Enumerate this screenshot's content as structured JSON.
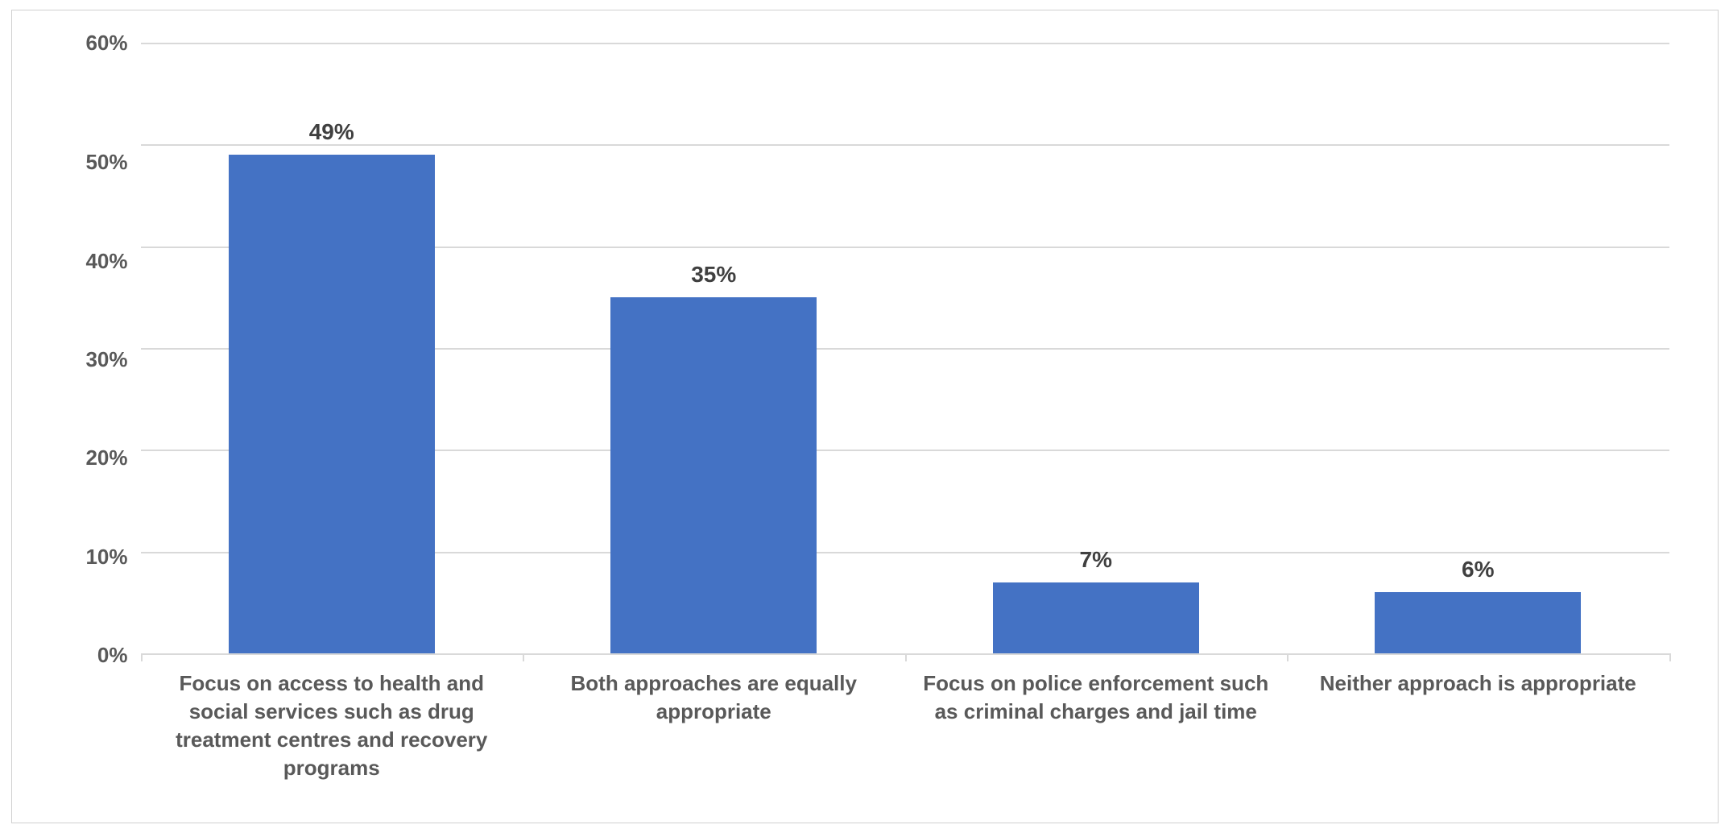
{
  "chart": {
    "type": "bar",
    "background_color": "#ffffff",
    "border_color": "#d0d0d0",
    "grid_color": "#d9d9d9",
    "axis_text_color": "#595959",
    "label_text_color": "#404040",
    "axis_fontsize_pt": 20,
    "data_label_fontsize_pt": 21,
    "font_weight": "700",
    "ylim": [
      0,
      60
    ],
    "ytick_step": 10,
    "y_ticks": [
      "60%",
      "50%",
      "40%",
      "30%",
      "20%",
      "10%",
      "0%"
    ],
    "y_format": "percent",
    "bar_width_ratio": 0.54,
    "bar_color": "#4472c4",
    "categories": [
      "Focus on access to health and social services such as drug treatment centres and recovery programs",
      "Both approaches are equally appropriate",
      "Focus on police enforcement such as criminal charges and jail time",
      "Neither approach is appropriate"
    ],
    "values": [
      49,
      35,
      7,
      6
    ],
    "value_labels": [
      "49%",
      "35%",
      "7%",
      "6%"
    ]
  }
}
